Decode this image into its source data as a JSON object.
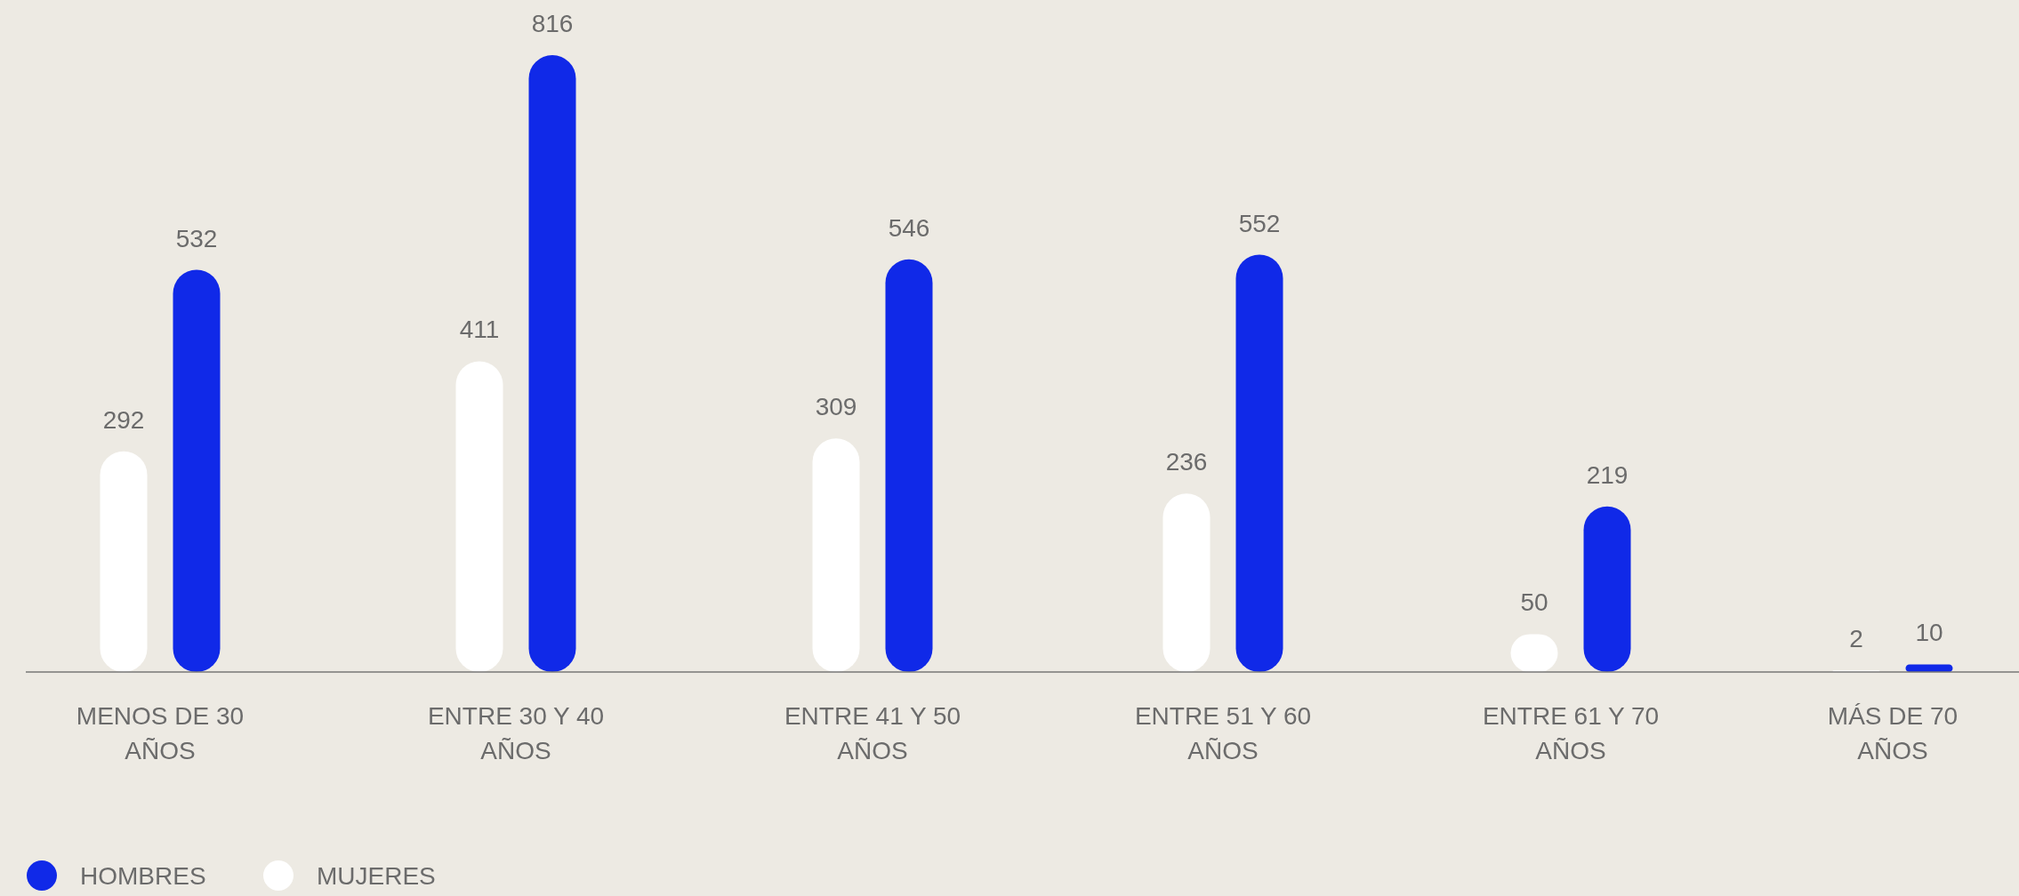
{
  "chart_data": {
    "type": "bar",
    "categories": [
      "MENOS DE 30 AÑOS",
      "ENTRE 30 Y 40 AÑOS",
      "ENTRE 41 Y 50 AÑOS",
      "ENTRE 51 Y 60 AÑOS",
      "ENTRE 61 Y 70 AÑOS",
      "MÁS DE 70 AÑOS"
    ],
    "series": [
      {
        "name": "MUJERES",
        "color": "#ffffff",
        "values": [
          292,
          411,
          309,
          236,
          50,
          2
        ]
      },
      {
        "name": "HOMBRES",
        "color": "#1029e8",
        "values": [
          532,
          816,
          546,
          552,
          219,
          10
        ]
      }
    ],
    "data_labels": true,
    "legend": "bottom left",
    "grid": false
  }
}
